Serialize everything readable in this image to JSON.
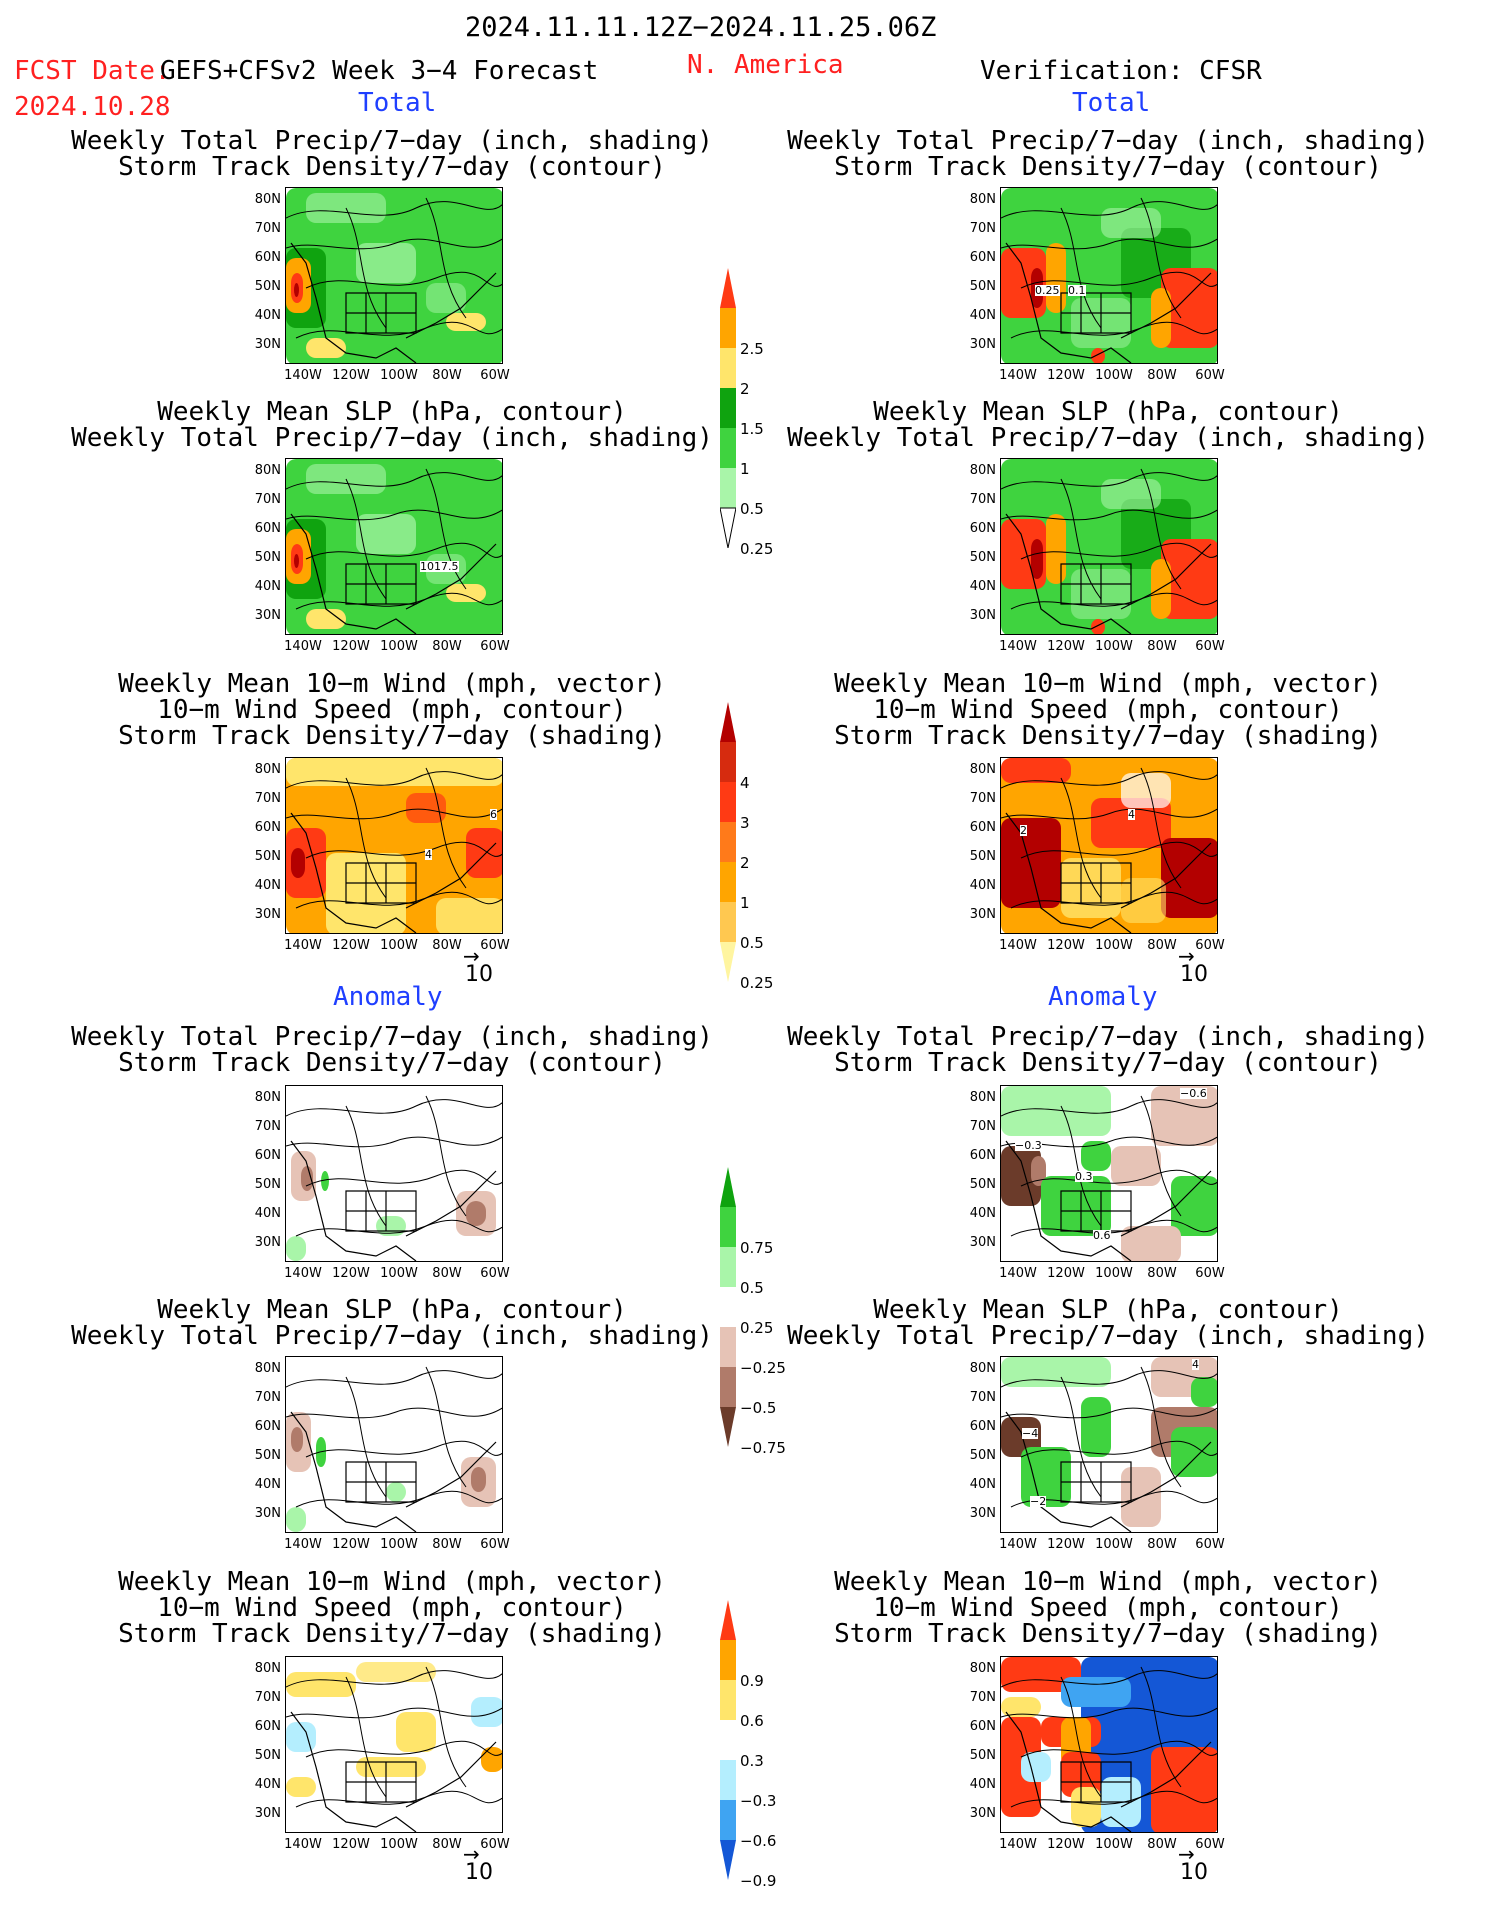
{
  "header": {
    "date_range": "2024.11.11.12Z−2024.11.25.06Z",
    "fcst_label": "FCST Date:",
    "fcst_model": "GEFS+CFSv2 Week 3−4 Forecast",
    "fcst_date": "2024.10.28",
    "region": "N. America",
    "verification": "Verification: CFSR"
  },
  "sections": {
    "total": "Total",
    "anomaly": "Anomaly"
  },
  "panel_titles": {
    "precip_storm": [
      "Weekly Total Precip/7−day (inch, shading)",
      "Storm Track Density/7−day (contour)"
    ],
    "slp_precip": [
      "Weekly Mean SLP (hPa, contour)",
      "Weekly Total Precip/7−day (inch, shading)"
    ],
    "wind_storm": [
      "Weekly Mean 10−m Wind (mph, vector)",
      "10−m Wind Speed (mph, contour)",
      "Storm Track Density/7−day (shading)"
    ]
  },
  "axes": {
    "lat_labels": [
      "80N",
      "70N",
      "60N",
      "50N",
      "40N",
      "30N"
    ],
    "lon_labels": [
      "140W",
      "120W",
      "100W",
      "80W",
      "60W"
    ]
  },
  "vector_ref": "10",
  "colorbars": {
    "precip_total": [
      "2.5",
      "2",
      "1.5",
      "1",
      "0.5",
      "0.25"
    ],
    "storm_total": [
      "4",
      "3",
      "2",
      "1",
      "0.5",
      "0.25"
    ],
    "precip_anom": [
      "0.75",
      "0.5",
      "0.25",
      "−0.25",
      "−0.5",
      "−0.75"
    ],
    "storm_anom": [
      "0.9",
      "0.6",
      "0.3",
      "−0.3",
      "−0.6",
      "−0.9"
    ]
  },
  "contour_labels": {
    "fc_slp_total": "1017.5",
    "obs_storm_total": "0.25",
    "obs_storm_total_b": "0.1",
    "fc_wind_total_a": "6",
    "fc_wind_total_b": "4",
    "obs_wind_total_a": "2",
    "obs_wind_total_b": "4",
    "obs_storm_anom_a": "−0.3",
    "obs_storm_anom_b": "0.3",
    "obs_storm_anom_c": "0.6",
    "obs_storm_anom_d": "−0.6",
    "obs_slp_anom_a": "−4",
    "obs_slp_anom_b": "−2",
    "obs_slp_anom_c": "4"
  },
  "colors": {
    "green_dark": "#0fa30f",
    "green": "#3fd33f",
    "green_light": "#a9f5a9",
    "yellow": "#ffe56b",
    "orange": "#ffa500",
    "red": "#ff3a14",
    "dark_red": "#b30000",
    "brown_light": "#e6c3b6",
    "brown": "#b07b6a",
    "brown_dark": "#6b3b2a",
    "blue_light": "#b4eefe",
    "blue": "#3fa4f2",
    "blue_dark": "#1457d6"
  }
}
